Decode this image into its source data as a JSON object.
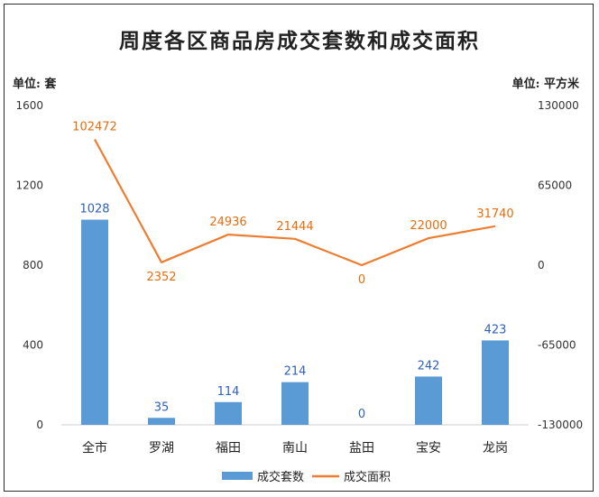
{
  "chart_data": {
    "type": "bar",
    "title": "周度各区商品房成交套数和成交面积",
    "left_unit": "单位: 套",
    "right_unit": "单位: 平方米",
    "categories": [
      "全市",
      "罗湖",
      "福田",
      "南山",
      "盐田",
      "宝安",
      "龙岗"
    ],
    "ylim": [
      0,
      1600
    ],
    "yticks": [
      0,
      400,
      800,
      1200,
      1600
    ],
    "y2lim": [
      -130000,
      130000
    ],
    "y2ticks": [
      -130000,
      -65000,
      0,
      65000,
      130000
    ],
    "series": [
      {
        "name": "成交套数",
        "type": "bar",
        "axis": "left",
        "color": "#5b9bd5",
        "values": [
          1028,
          35,
          114,
          214,
          0,
          242,
          423
        ]
      },
      {
        "name": "成交面积",
        "type": "line",
        "axis": "right",
        "color": "#ed7d31",
        "values": [
          102472,
          2352,
          24936,
          21444,
          0,
          22000,
          31740
        ]
      }
    ],
    "legend": "bottom",
    "grid": false
  }
}
